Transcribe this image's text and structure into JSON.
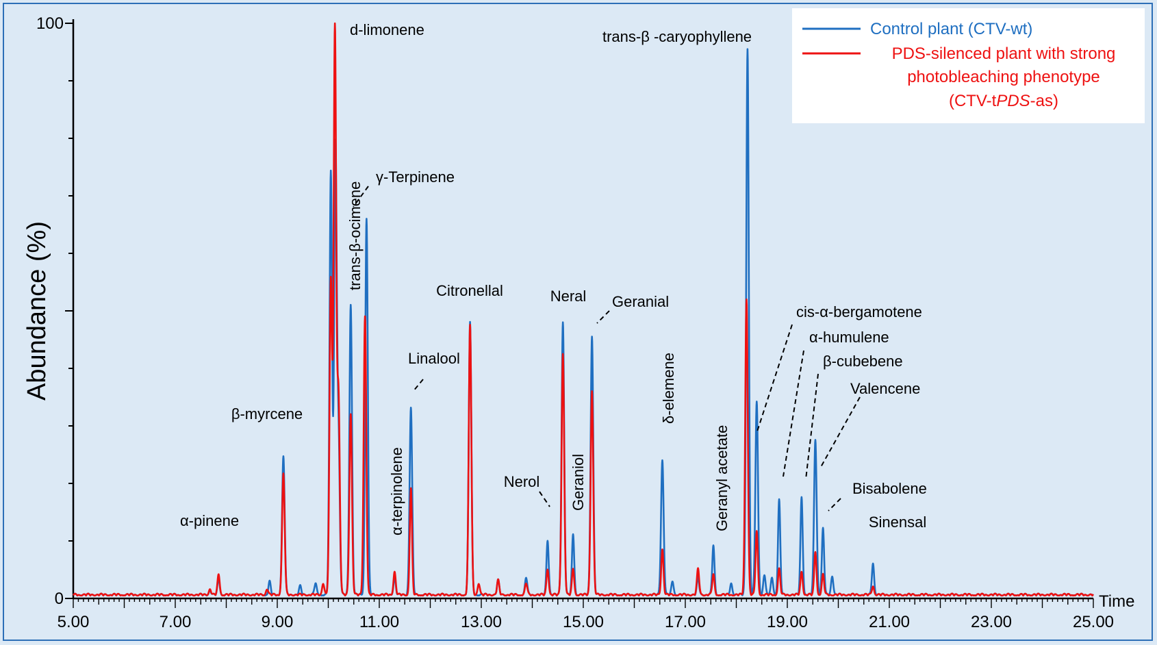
{
  "chart_data": {
    "type": "line",
    "title": "",
    "xlabel": "Time",
    "ylabel": "Abundance (%)",
    "xlim": [
      5.0,
      25.0
    ],
    "ylim": [
      0,
      100
    ],
    "x_ticks": [
      "5.00",
      "7.00",
      "9.00",
      "11.00",
      "13.00",
      "15.00",
      "17.00",
      "19.00",
      "21.00",
      "23.00",
      "25.00"
    ],
    "y_ticks": [
      "0",
      "100"
    ],
    "legend": {
      "placement": "top-right",
      "entries": [
        {
          "label": "Control plant (CTV-wt)",
          "color": "#1f6fc1"
        },
        {
          "label_lines": [
            "PDS-silenced plant with strong",
            "photobleaching phenotype",
            "(CTV-tPDS-as)"
          ],
          "color": "#ee1111"
        }
      ]
    },
    "series": [
      {
        "name": "Control plant (CTV-wt)",
        "color": "#1f6fc1",
        "baseline": 0.5,
        "peaks": [
          {
            "t": 7.68,
            "h": 1.3
          },
          {
            "t": 7.85,
            "h": 3.3
          },
          {
            "t": 8.85,
            "h": 2.8
          },
          {
            "t": 9.12,
            "h": 24.5
          },
          {
            "t": 9.45,
            "h": 2.0
          },
          {
            "t": 9.75,
            "h": 2.5
          },
          {
            "t": 10.05,
            "h": 74.0
          },
          {
            "t": 10.14,
            "h": 78.0
          },
          {
            "t": 10.2,
            "h": 28.0
          },
          {
            "t": 10.44,
            "h": 51.0
          },
          {
            "t": 10.75,
            "h": 66.0
          },
          {
            "t": 11.3,
            "h": 3.5
          },
          {
            "t": 11.62,
            "h": 33.0
          },
          {
            "t": 12.78,
            "h": 48.0
          },
          {
            "t": 13.33,
            "h": 3.0
          },
          {
            "t": 13.88,
            "h": 3.5
          },
          {
            "t": 14.3,
            "h": 10.0
          },
          {
            "t": 14.6,
            "h": 48.0
          },
          {
            "t": 14.8,
            "h": 11.0
          },
          {
            "t": 15.17,
            "h": 45.5
          },
          {
            "t": 16.55,
            "h": 24.0
          },
          {
            "t": 16.75,
            "h": 2.8
          },
          {
            "t": 17.25,
            "h": 3.5
          },
          {
            "t": 17.55,
            "h": 9.0
          },
          {
            "t": 17.9,
            "h": 2.5
          },
          {
            "t": 18.22,
            "h": 95.5
          },
          {
            "t": 18.4,
            "h": 34.0
          },
          {
            "t": 18.55,
            "h": 4.0
          },
          {
            "t": 18.7,
            "h": 3.5
          },
          {
            "t": 18.84,
            "h": 17.0
          },
          {
            "t": 19.28,
            "h": 17.5
          },
          {
            "t": 19.55,
            "h": 27.5
          },
          {
            "t": 19.7,
            "h": 12.0
          },
          {
            "t": 19.88,
            "h": 3.8
          },
          {
            "t": 20.68,
            "h": 6.0
          }
        ]
      },
      {
        "name": "PDS-silenced plant with strong photobleaching phenotype (CTV-tPDS-as)",
        "color": "#ee1111",
        "baseline": 0.5,
        "peaks": [
          {
            "t": 7.68,
            "h": 1.5
          },
          {
            "t": 7.85,
            "h": 4.0
          },
          {
            "t": 8.8,
            "h": 1.5
          },
          {
            "t": 9.12,
            "h": 21.5
          },
          {
            "t": 9.9,
            "h": 2.5
          },
          {
            "t": 10.05,
            "h": 55.0
          },
          {
            "t": 10.13,
            "h": 99.0
          },
          {
            "t": 10.2,
            "h": 35.0
          },
          {
            "t": 10.44,
            "h": 32.0
          },
          {
            "t": 10.72,
            "h": 49.0
          },
          {
            "t": 11.3,
            "h": 4.5
          },
          {
            "t": 11.62,
            "h": 19.0
          },
          {
            "t": 12.78,
            "h": 47.5
          },
          {
            "t": 12.95,
            "h": 2.5
          },
          {
            "t": 13.33,
            "h": 3.0
          },
          {
            "t": 13.88,
            "h": 2.5
          },
          {
            "t": 14.3,
            "h": 5.0
          },
          {
            "t": 14.6,
            "h": 42.5
          },
          {
            "t": 14.8,
            "h": 5.0
          },
          {
            "t": 15.17,
            "h": 36.0
          },
          {
            "t": 16.55,
            "h": 8.5
          },
          {
            "t": 17.25,
            "h": 5.0
          },
          {
            "t": 17.55,
            "h": 4.0
          },
          {
            "t": 18.2,
            "h": 52.0
          },
          {
            "t": 18.4,
            "h": 11.5
          },
          {
            "t": 18.84,
            "h": 5.0
          },
          {
            "t": 19.28,
            "h": 4.5
          },
          {
            "t": 19.55,
            "h": 8.0
          },
          {
            "t": 19.7,
            "h": 4.0
          },
          {
            "t": 20.68,
            "h": 2.0
          }
        ]
      }
    ],
    "annotations": [
      {
        "text": "α-pinene",
        "t": 7.85
      },
      {
        "text": "β-myrcene",
        "t": 9.12
      },
      {
        "text": "d-limonene",
        "t": 10.13
      },
      {
        "text": "trans-β-ocimene",
        "t": 10.44
      },
      {
        "text": "γ-Terpinene",
        "t": 10.75
      },
      {
        "text": "α-terpinolene",
        "t": 11.3
      },
      {
        "text": "Linalool",
        "t": 11.62
      },
      {
        "text": "Citronellal",
        "t": 12.78
      },
      {
        "text": "Nerol",
        "t": 14.3
      },
      {
        "text": "Neral",
        "t": 14.6
      },
      {
        "text": "Geraniol",
        "t": 14.8
      },
      {
        "text": "Geranial",
        "t": 15.17
      },
      {
        "text": "δ-elemene",
        "t": 16.55
      },
      {
        "text": "Geranyl acetate",
        "t": 17.55
      },
      {
        "text": "trans-β -caryophyllene",
        "t": 18.22
      },
      {
        "text": "cis-α-bergamotene",
        "t": 18.4
      },
      {
        "text": "α-humulene",
        "t": 18.84
      },
      {
        "text": "β-cubebene",
        "t": 19.28
      },
      {
        "text": "Valencene",
        "t": 19.55
      },
      {
        "text": "Bisabolene",
        "t": 19.7
      },
      {
        "text": "Sinensal",
        "t": 20.68
      }
    ]
  }
}
